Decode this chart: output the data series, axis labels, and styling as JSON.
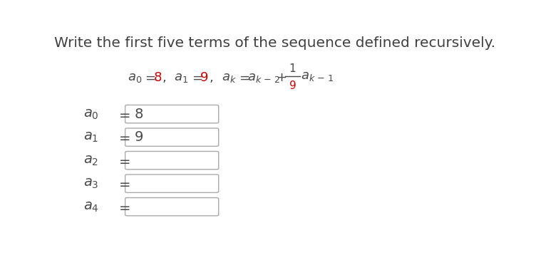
{
  "title": "Write the first five terms of the sequence defined recursively.",
  "title_color": "#404040",
  "title_fontsize": 14.5,
  "bg_color": "#ffffff",
  "formula_color": "#4a4a4a",
  "red_color": "#cc0000",
  "rows": [
    {
      "sub": "0",
      "value": "8",
      "filled": true
    },
    {
      "sub": "1",
      "value": "9",
      "filled": true
    },
    {
      "sub": "2",
      "value": "",
      "filled": false
    },
    {
      "sub": "3",
      "value": "",
      "filled": false
    },
    {
      "sub": "4",
      "value": "",
      "filled": false
    }
  ],
  "box_edge_color": "#aaaaaa",
  "box_fill_color": "#ffffff",
  "formula_fontsize": 13,
  "row_fontsize": 14
}
